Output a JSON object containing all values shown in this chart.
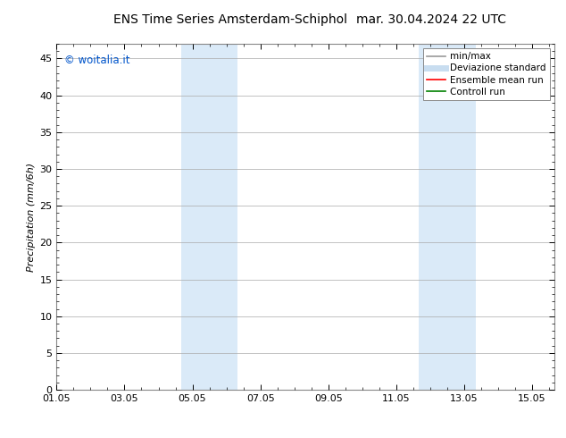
{
  "title_left": "ENS Time Series Amsterdam-Schiphol",
  "title_right": "mar. 30.04.2024 22 UTC",
  "ylabel": "Precipitation (mm/6h)",
  "xlim": [
    0,
    14.667
  ],
  "ylim": [
    0,
    47
  ],
  "yticks": [
    0,
    5,
    10,
    15,
    20,
    25,
    30,
    35,
    40,
    45
  ],
  "xtick_labels": [
    "01.05",
    "03.05",
    "05.05",
    "07.05",
    "09.05",
    "11.05",
    "13.05",
    "15.05"
  ],
  "xtick_positions": [
    0,
    2,
    4,
    6,
    8,
    10,
    12,
    14
  ],
  "shaded_regions": [
    {
      "xmin": 3.667,
      "xmax": 5.333,
      "color": "#daeaf8"
    },
    {
      "xmin": 10.667,
      "xmax": 12.333,
      "color": "#daeaf8"
    }
  ],
  "legend_entries": [
    {
      "label": "min/max",
      "color": "#999999",
      "lw": 1.2,
      "linestyle": "-"
    },
    {
      "label": "Deviazione standard",
      "color": "#c8ddf0",
      "lw": 5,
      "linestyle": "-"
    },
    {
      "label": "Ensemble mean run",
      "color": "red",
      "lw": 1.2,
      "linestyle": "-"
    },
    {
      "label": "Controll run",
      "color": "green",
      "lw": 1.2,
      "linestyle": "-"
    }
  ],
  "watermark_text": "© woitalia.it",
  "watermark_color": "#0055cc",
  "bg_color": "#ffffff",
  "grid_color": "#aaaaaa",
  "title_fontsize": 10,
  "ylabel_fontsize": 8,
  "tick_fontsize": 8,
  "legend_fontsize": 7.5
}
